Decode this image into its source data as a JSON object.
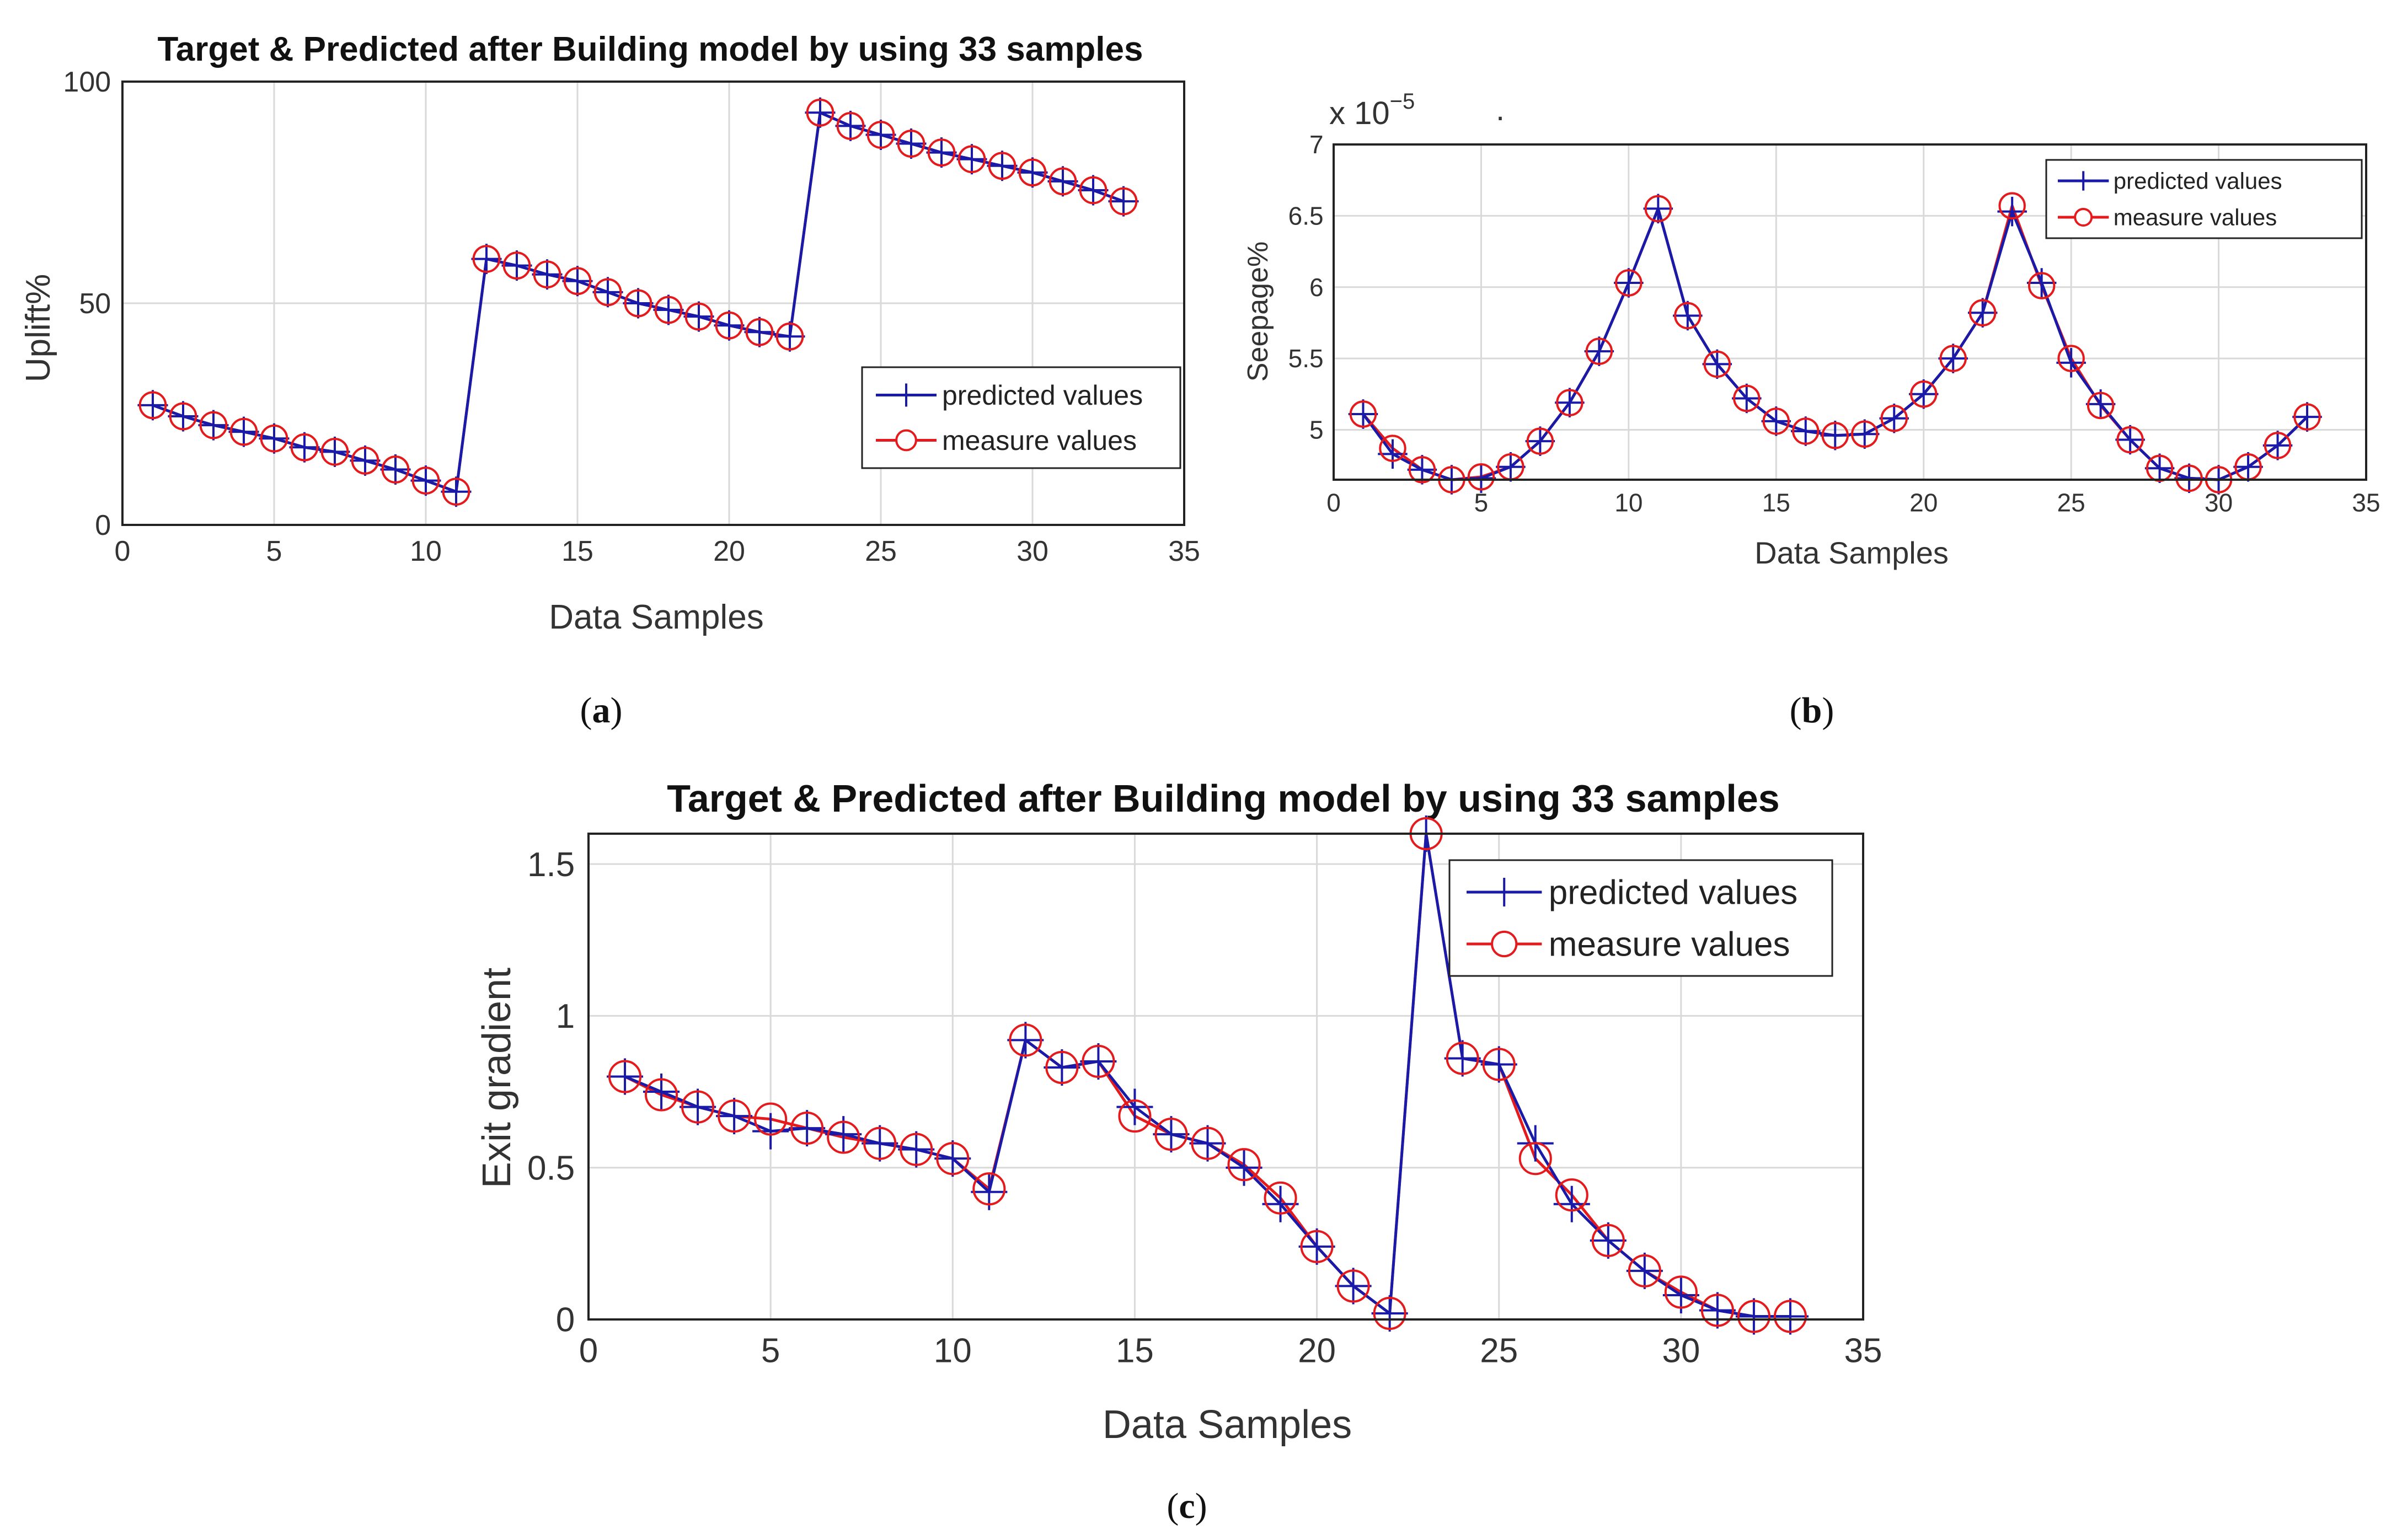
{
  "colors": {
    "predicted": "#1a1aa8",
    "measured": "#e41a1c",
    "grid": "#d9d9d9",
    "frame": "#222222"
  },
  "chart_data": [
    {
      "id": "a",
      "type": "line",
      "caption_letter": "a",
      "title": "Target & Predicted after Building model by using 33 samples",
      "xlabel": "Data Samples",
      "ylabel": "Uplift%",
      "xlim": [
        0,
        35
      ],
      "ylim": [
        0,
        100
      ],
      "xticks": [
        "0",
        "5",
        "10",
        "15",
        "20",
        "25",
        "30",
        "35"
      ],
      "yticks": [
        "0",
        "50",
        "100"
      ],
      "legend_position": "lower-right",
      "series": [
        {
          "name": "predicted values",
          "marker": "plus",
          "color": "#1a1aa8",
          "x": [
            1,
            2,
            3,
            4,
            5,
            6,
            7,
            8,
            9,
            10,
            11,
            12,
            13,
            14,
            15,
            16,
            17,
            18,
            19,
            20,
            21,
            22,
            23,
            24,
            25,
            26,
            27,
            28,
            29,
            30,
            31,
            32,
            33
          ],
          "values": [
            27,
            24.5,
            22.5,
            21,
            19.5,
            17.5,
            16.5,
            14.5,
            12.5,
            10,
            7.5,
            60,
            58.5,
            56.5,
            55,
            52.5,
            50,
            48.5,
            47,
            45,
            43.5,
            42.5,
            93,
            90,
            88,
            86,
            84,
            82.5,
            81,
            79.5,
            77.5,
            75.5,
            73
          ]
        },
        {
          "name": "measure values",
          "marker": "circle",
          "color": "#e41a1c",
          "x": [
            1,
            2,
            3,
            4,
            5,
            6,
            7,
            8,
            9,
            10,
            11,
            12,
            13,
            14,
            15,
            16,
            17,
            18,
            19,
            20,
            21,
            22,
            23,
            24,
            25,
            26,
            27,
            28,
            29,
            30,
            31,
            32,
            33
          ],
          "values": [
            27,
            24.5,
            22.5,
            21,
            19.5,
            17.5,
            16.5,
            14.5,
            12.5,
            10,
            7.5,
            60,
            58.5,
            56.5,
            55,
            52.5,
            50,
            48.5,
            47,
            45,
            43.5,
            42.5,
            93,
            90,
            88,
            86,
            84,
            82.5,
            81,
            79.5,
            77.5,
            75.5,
            73
          ]
        }
      ]
    },
    {
      "id": "b",
      "type": "line",
      "caption_letter": "b",
      "title": "",
      "multiplier_base": "x 10",
      "multiplier_exp": "−5",
      "stray_mark": ".",
      "xlabel": "Data Samples",
      "ylabel": "Seepage%",
      "xlim": [
        0,
        35
      ],
      "ylim": [
        4.65,
        7
      ],
      "xticks": [
        "0",
        "5",
        "10",
        "15",
        "20",
        "25",
        "30",
        "35"
      ],
      "yticks": [
        "5",
        "5.5",
        "6",
        "6.5",
        "7"
      ],
      "legend_position": "top-right",
      "series": [
        {
          "name": "predicted values",
          "marker": "plus",
          "color": "#1a1aa8",
          "x": [
            1,
            2,
            3,
            4,
            5,
            6,
            7,
            8,
            9,
            10,
            11,
            12,
            13,
            14,
            15,
            16,
            17,
            18,
            19,
            20,
            21,
            22,
            23,
            24,
            25,
            26,
            27,
            28,
            29,
            30,
            31,
            32,
            33
          ],
          "values": [
            5.11,
            4.83,
            4.72,
            4.65,
            4.66,
            4.74,
            4.92,
            5.19,
            5.55,
            6.03,
            6.55,
            5.8,
            5.46,
            5.22,
            5.06,
            4.99,
            4.96,
            4.97,
            5.08,
            5.25,
            5.5,
            5.82,
            6.53,
            6.03,
            5.47,
            5.18,
            4.93,
            4.73,
            4.66,
            4.65,
            4.74,
            4.89,
            5.09
          ]
        },
        {
          "name": "measure values",
          "marker": "circle",
          "color": "#e41a1c",
          "x": [
            1,
            2,
            3,
            4,
            5,
            6,
            7,
            8,
            9,
            10,
            11,
            12,
            13,
            14,
            15,
            16,
            17,
            18,
            19,
            20,
            21,
            22,
            23,
            24,
            25,
            26,
            27,
            28,
            29,
            30,
            31,
            32,
            33
          ],
          "values": [
            5.11,
            4.87,
            4.72,
            4.65,
            4.67,
            4.74,
            4.92,
            5.19,
            5.55,
            6.03,
            6.55,
            5.8,
            5.46,
            5.22,
            5.06,
            4.99,
            4.96,
            4.97,
            5.08,
            5.25,
            5.5,
            5.82,
            6.57,
            6.01,
            5.5,
            5.17,
            4.93,
            4.73,
            4.66,
            4.65,
            4.74,
            4.89,
            5.09
          ]
        }
      ]
    },
    {
      "id": "c",
      "type": "line",
      "caption_letter": "c",
      "title": "Target & Predicted after Building model by using 33 samples",
      "xlabel": "Data Samples",
      "ylabel": "Exit gradient",
      "xlim": [
        0,
        35
      ],
      "ylim": [
        0,
        1.6
      ],
      "xticks": [
        "0",
        "5",
        "10",
        "15",
        "20",
        "25",
        "30",
        "35"
      ],
      "yticks": [
        "0",
        "0.5",
        "1",
        "1.5"
      ],
      "legend_position": "top-right",
      "series": [
        {
          "name": "predicted values",
          "marker": "plus",
          "color": "#1a1aa8",
          "x": [
            1,
            2,
            3,
            4,
            5,
            6,
            7,
            8,
            9,
            10,
            11,
            12,
            13,
            14,
            15,
            16,
            17,
            18,
            19,
            20,
            21,
            22,
            23,
            24,
            25,
            26,
            27,
            28,
            29,
            30,
            31,
            32,
            33
          ],
          "values": [
            0.8,
            0.75,
            0.7,
            0.67,
            0.62,
            0.63,
            0.61,
            0.58,
            0.56,
            0.53,
            0.42,
            0.92,
            0.83,
            0.85,
            0.7,
            0.61,
            0.58,
            0.5,
            0.38,
            0.24,
            0.11,
            0.02,
            1.6,
            0.86,
            0.84,
            0.58,
            0.38,
            0.26,
            0.16,
            0.08,
            0.03,
            0.01,
            0.01
          ]
        },
        {
          "name": "measure values",
          "marker": "circle",
          "color": "#e41a1c",
          "x": [
            1,
            2,
            3,
            4,
            5,
            6,
            7,
            8,
            9,
            10,
            11,
            12,
            13,
            14,
            15,
            16,
            17,
            18,
            19,
            20,
            21,
            22,
            23,
            24,
            25,
            26,
            27,
            28,
            29,
            30,
            31,
            32,
            33
          ],
          "values": [
            0.8,
            0.74,
            0.7,
            0.67,
            0.66,
            0.63,
            0.6,
            0.58,
            0.56,
            0.53,
            0.43,
            0.92,
            0.83,
            0.85,
            0.67,
            0.61,
            0.58,
            0.51,
            0.4,
            0.24,
            0.11,
            0.02,
            1.6,
            0.86,
            0.84,
            0.53,
            0.41,
            0.26,
            0.16,
            0.09,
            0.03,
            0.01,
            0.01
          ]
        }
      ]
    }
  ]
}
